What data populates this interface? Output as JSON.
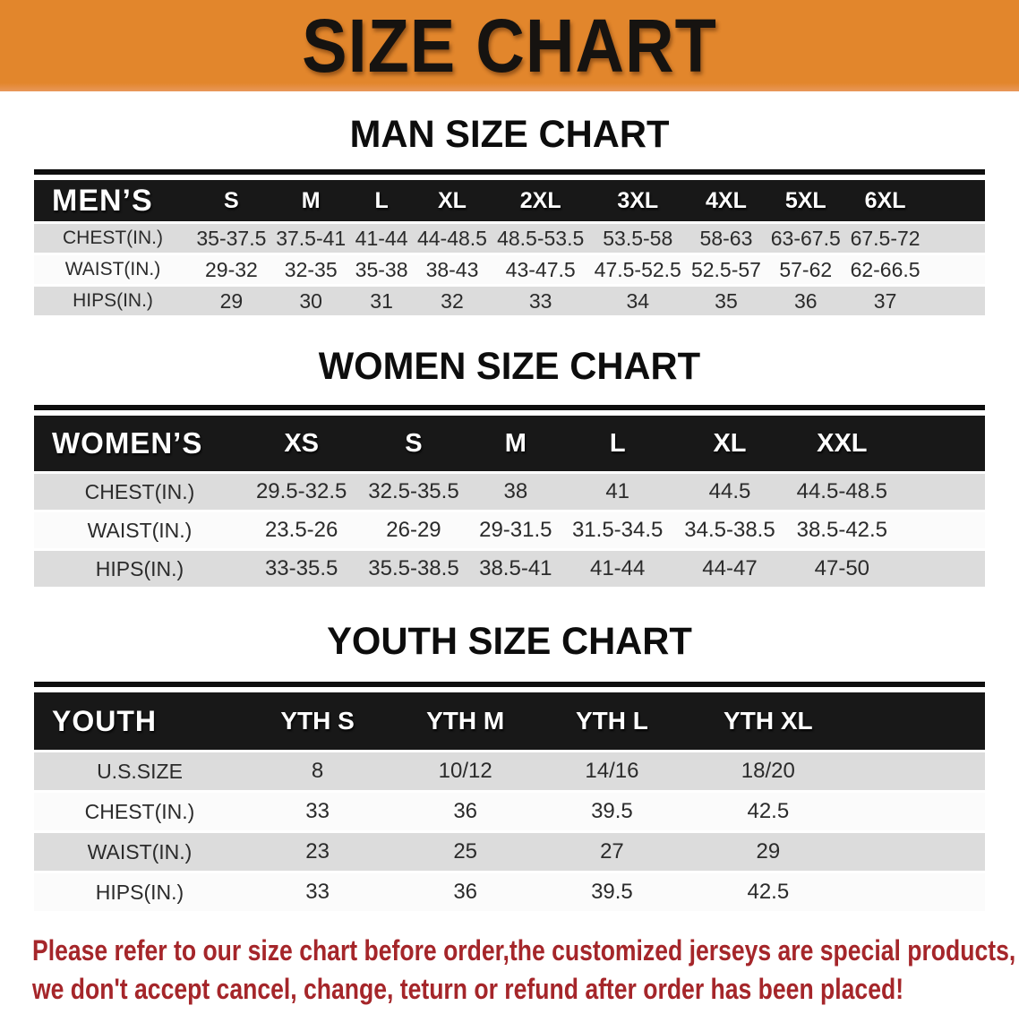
{
  "banner": {
    "title": "SIZE CHART",
    "bg_color": "#e2862c",
    "text_color": "#161310"
  },
  "sections": [
    {
      "id": "men",
      "title": "MAN SIZE CHART",
      "header_label": "MEN’S",
      "columns": [
        "S",
        "M",
        "L",
        "XL",
        "2XL",
        "3XL",
        "4XL",
        "5XL",
        "6XL"
      ],
      "rows": [
        {
          "label": "CHEST(IN.)",
          "values": [
            "35-37.5",
            "37.5-41",
            "41-44",
            "44-48.5",
            "48.5-53.5",
            "53.5-58",
            "58-63",
            "63-67.5",
            "67.5-72"
          ]
        },
        {
          "label": "WAIST(IN.)",
          "values": [
            "29-32",
            "32-35",
            "35-38",
            "38-43",
            "43-47.5",
            "47.5-52.5",
            "52.5-57",
            "57-62",
            "62-66.5"
          ]
        },
        {
          "label": "HIPS(IN.)",
          "values": [
            "29",
            "30",
            "31",
            "32",
            "33",
            "34",
            "35",
            "36",
            "37"
          ]
        }
      ]
    },
    {
      "id": "women",
      "title": "WOMEN SIZE CHART",
      "header_label": "WOMEN’S",
      "columns": [
        "XS",
        "S",
        "M",
        "L",
        "XL",
        "XXL"
      ],
      "rows": [
        {
          "label": "CHEST(IN.)",
          "values": [
            "29.5-32.5",
            "32.5-35.5",
            "38",
            "41",
            "44.5",
            "44.5-48.5"
          ]
        },
        {
          "label": "WAIST(IN.)",
          "values": [
            "23.5-26",
            "26-29",
            "29-31.5",
            "31.5-34.5",
            "34.5-38.5",
            "38.5-42.5"
          ]
        },
        {
          "label": "HIPS(IN.)",
          "values": [
            "33-35.5",
            "35.5-38.5",
            "38.5-41",
            "41-44",
            "44-47",
            "47-50"
          ]
        }
      ]
    },
    {
      "id": "youth",
      "title": "YOUTH SIZE CHART",
      "header_label": "YOUTH",
      "columns": [
        "YTH S",
        "YTH M",
        "YTH L",
        "YTH XL"
      ],
      "rows": [
        {
          "label": "U.S.SIZE",
          "values": [
            "8",
            "10/12",
            "14/16",
            "18/20"
          ]
        },
        {
          "label": "CHEST(IN.)",
          "values": [
            "33",
            "36",
            "39.5",
            "42.5"
          ]
        },
        {
          "label": "WAIST(IN.)",
          "values": [
            "23",
            "25",
            "27",
            "29"
          ]
        },
        {
          "label": "HIPS(IN.)",
          "values": [
            "33",
            "36",
            "39.5",
            "42.5"
          ]
        }
      ]
    }
  ],
  "table_colors": {
    "header_bg": "#181818",
    "header_text": "#ffffff",
    "stripe_gray": "#dcdcdc",
    "stripe_white": "#fbfbfb"
  },
  "disclaimer": {
    "line1": "Please refer to our size chart before order,the customized jerseys are special products,",
    "line2": "we don't accept cancel, change, teturn or refund after order has been placed!",
    "color": "#a5262a"
  }
}
